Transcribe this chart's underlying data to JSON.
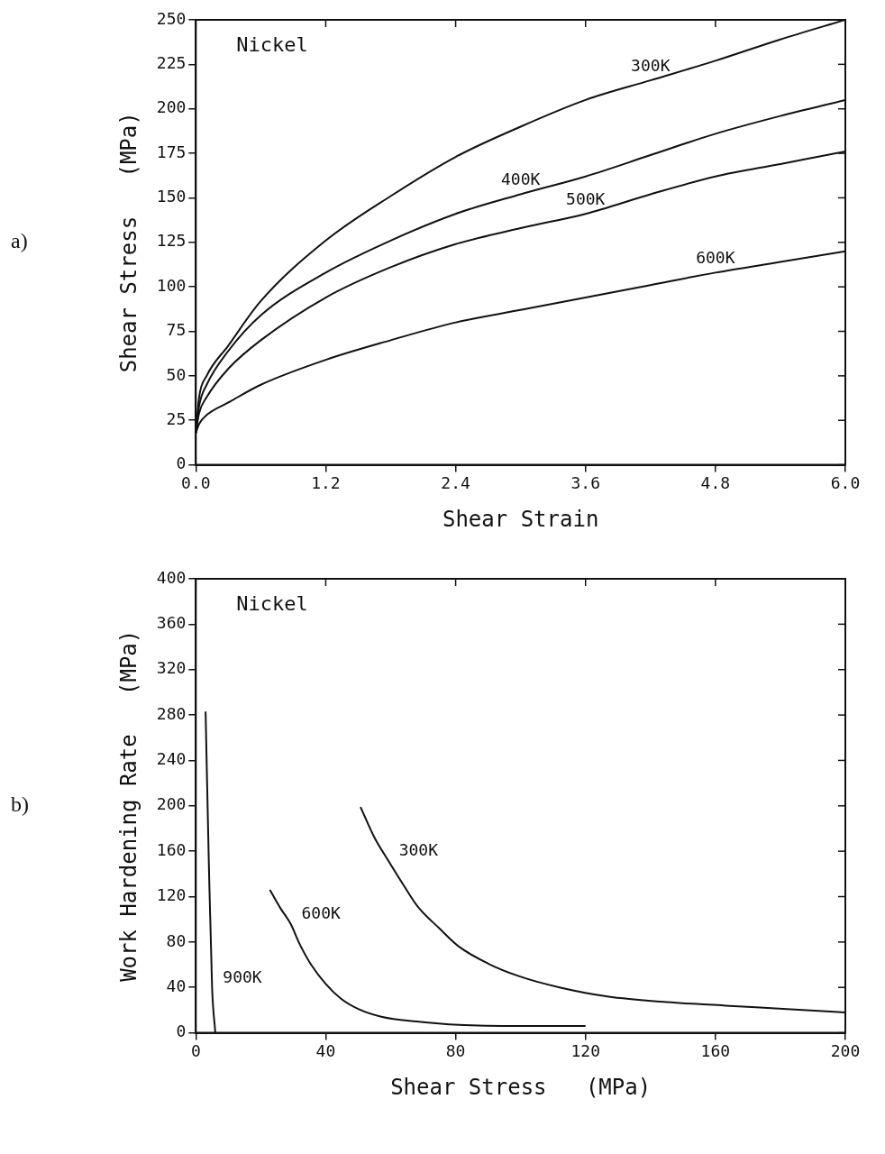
{
  "chart_data": [
    {
      "type": "line",
      "xlabel": "Shear Strain",
      "ylabel": "Shear Stress   (MPa)",
      "annotations": [
        "a)",
        "Nickel"
      ],
      "xlim": [
        0,
        6
      ],
      "xticks": [
        {
          "value": 0,
          "label": "0.0"
        },
        {
          "value": 1.2,
          "label": "1.2"
        },
        {
          "value": 2.4,
          "label": "2.4"
        },
        {
          "value": 3.6,
          "label": "3.6"
        },
        {
          "value": 4.8,
          "label": "4.8"
        },
        {
          "value": 6,
          "label": "6.0"
        }
      ],
      "ylim": [
        0,
        250
      ],
      "yticks": [
        0,
        25,
        50,
        75,
        100,
        125,
        150,
        175,
        200,
        225,
        250
      ],
      "grid": false,
      "legend": false,
      "marker": "none",
      "line_style": "solid",
      "series": [
        {
          "name": "300K",
          "color": "#111111",
          "x": [
            0,
            0.03,
            0.1,
            0.3,
            0.6,
            1.2,
            1.8,
            2.4,
            3.0,
            3.6,
            4.2,
            4.8,
            5.4,
            6.0
          ],
          "values": [
            18,
            38,
            50,
            67,
            92,
            126,
            151,
            173,
            190,
            205,
            216,
            227,
            239,
            250
          ]
        },
        {
          "name": "400K",
          "color": "#111111",
          "x": [
            0,
            0.03,
            0.1,
            0.3,
            0.6,
            1.2,
            1.8,
            2.4,
            3.0,
            3.6,
            4.2,
            4.8,
            5.4,
            6.0
          ],
          "values": [
            18,
            33,
            45,
            64,
            84,
            108,
            126,
            141,
            152,
            162,
            174,
            186,
            196,
            205
          ]
        },
        {
          "name": "500K",
          "color": "#111111",
          "x": [
            0,
            0.03,
            0.1,
            0.3,
            0.6,
            1.2,
            1.8,
            2.4,
            3.0,
            3.6,
            4.2,
            4.8,
            5.4,
            6.0
          ],
          "values": [
            18,
            29,
            38,
            54,
            70,
            94,
            111,
            124,
            133,
            141,
            152,
            162,
            169,
            176
          ]
        },
        {
          "name": "600K",
          "color": "#111111",
          "x": [
            0,
            0.03,
            0.1,
            0.3,
            0.6,
            1.2,
            1.8,
            2.4,
            3.0,
            3.6,
            4.2,
            4.8,
            5.4,
            6.0
          ],
          "values": [
            18,
            23,
            28,
            35,
            45,
            59,
            70,
            80,
            87,
            94,
            101,
            108,
            114,
            120
          ]
        }
      ]
    },
    {
      "type": "line",
      "xlabel": "Shear Stress   (MPa)",
      "ylabel": "Work Hardening Rate   (MPa)",
      "annotations": [
        "b)",
        "Nickel"
      ],
      "xlim": [
        0,
        200
      ],
      "xticks": [
        0,
        40,
        80,
        120,
        160,
        200
      ],
      "ylim": [
        0,
        400
      ],
      "yticks": [
        0,
        40,
        80,
        120,
        160,
        200,
        240,
        280,
        320,
        360,
        400
      ],
      "grid": false,
      "legend": false,
      "marker": "none",
      "line_style": "solid",
      "series": [
        {
          "name": "300K",
          "color": "#111111",
          "x": [
            50.7,
            55,
            59.2,
            64,
            68.4,
            75,
            81,
            90,
            99.4,
            112,
            126.7,
            145,
            163,
            182,
            200
          ],
          "values": [
            199,
            172,
            152,
            130,
            111,
            92,
            76,
            61,
            50,
            40,
            32,
            27,
            24,
            21,
            18
          ]
        },
        {
          "name": "600K",
          "color": "#111111",
          "x": [
            22.8,
            26,
            29.2,
            32,
            35.5,
            40,
            44.7,
            50,
            57.4,
            68,
            81,
            100,
            120
          ],
          "values": [
            126,
            110,
            96,
            78,
            60,
            43,
            30,
            21,
            14,
            10,
            7,
            6,
            6
          ]
        },
        {
          "name": "900K",
          "color": "#111111",
          "x": [
            3,
            4,
            5,
            6
          ],
          "values": [
            283,
            150,
            40,
            0
          ]
        }
      ]
    }
  ]
}
